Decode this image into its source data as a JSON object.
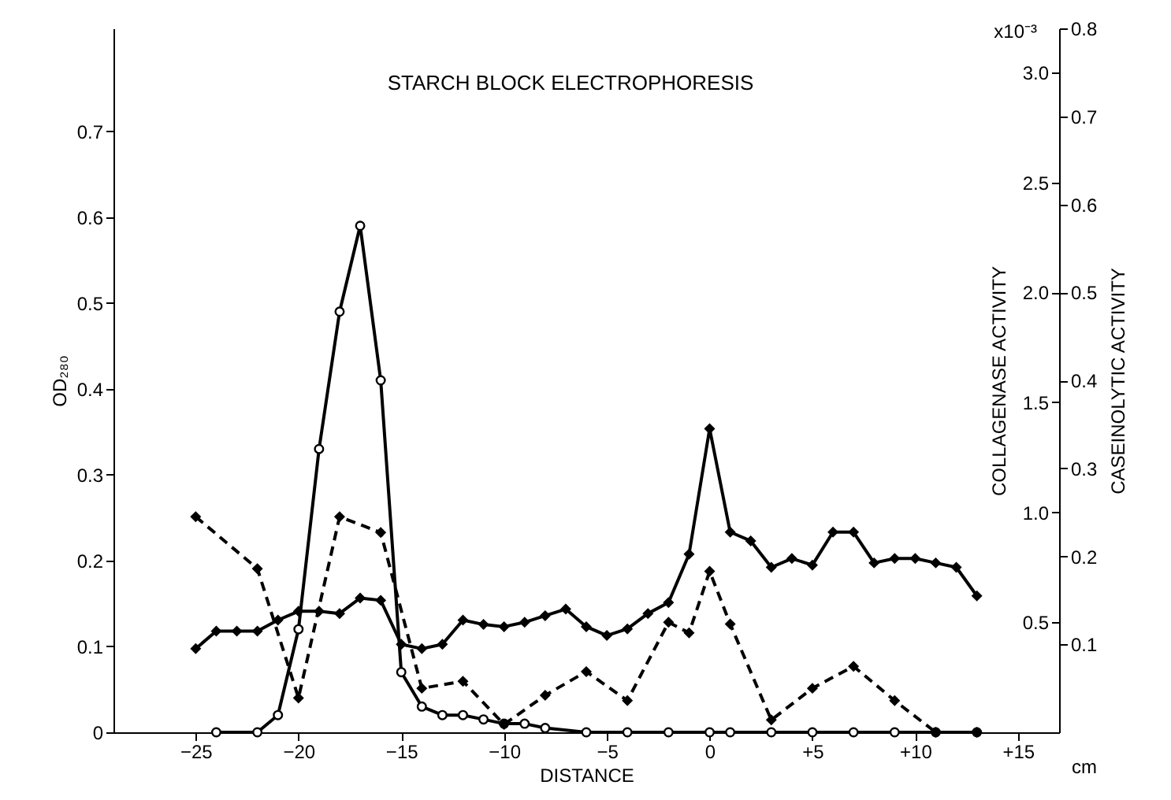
{
  "chart_data": {
    "type": "line",
    "title": "STARCH BLOCK ELECTROPHORESIS",
    "xlabel": "DISTANCE",
    "ylabel": "OD₂₈₀",
    "y2label": "COLLAGENASE ACTIVITY",
    "y3label": "CASEINOLYTIC ACTIVITY",
    "annotations": [
      "x10⁻³",
      "cm"
    ],
    "xlim": [
      -29,
      17
    ],
    "xticks": [
      -25,
      -20,
      -15,
      -10,
      -5,
      0,
      {
        "value": 5,
        "label": "+5"
      },
      {
        "value": 10,
        "label": "+10"
      },
      {
        "value": 15,
        "label": "+15"
      }
    ],
    "ylim": [
      0,
      0.82
    ],
    "yticks": [
      {
        "value": 0,
        "label": "0"
      },
      0.1,
      0.2,
      0.3,
      0.4,
      0.5,
      0.6,
      0.7
    ],
    "y2lim": [
      0,
      3.2
    ],
    "y2ticks": [
      0.5,
      {
        "value": 1,
        "label": "1.0"
      },
      1.5,
      {
        "value": 2,
        "label": "2.0"
      },
      2.5,
      {
        "value": 3,
        "label": "3.0"
      }
    ],
    "y3lim": [
      0,
      0.8
    ],
    "y3ticks": [
      0.1,
      0.2,
      0.3,
      0.4,
      0.5,
      0.6,
      0.7,
      0.8
    ],
    "grid": false,
    "series": [
      {
        "color": "#000000",
        "marker": "circle",
        "line_style": "solid",
        "x": [
          -24,
          -22,
          -21,
          -20,
          -19,
          -18,
          -17,
          -16,
          -15,
          -14,
          -13,
          -12,
          -11,
          -10,
          -9,
          -8,
          -6,
          -4,
          -2,
          0,
          1,
          3,
          5,
          7,
          9,
          11,
          13
        ],
        "values": [
          0,
          0,
          0.02,
          0.12,
          0.33,
          0.49,
          0.59,
          0.41,
          0.07,
          0.03,
          0.02,
          0.02,
          0.015,
          0.01,
          0.01,
          0.005,
          0,
          0,
          0,
          0,
          0,
          0,
          0,
          0,
          0,
          0,
          0
        ]
      },
      {
        "color": "#000000",
        "marker": "diamond",
        "line_style": "solid",
        "axis": "y2",
        "x": [
          -25,
          -24,
          -23,
          -22,
          -21,
          -20,
          -19,
          -18,
          -17,
          -16,
          -15,
          -14,
          -13,
          -12,
          -11,
          -10,
          -9,
          -8,
          -7,
          -6,
          -5,
          -4,
          -3,
          -2,
          -1,
          0,
          1,
          2,
          3,
          4,
          5,
          6,
          7,
          8,
          9,
          10,
          11,
          12,
          13
        ],
        "values": [
          0.38,
          0.46,
          0.46,
          0.46,
          0.51,
          0.55,
          0.55,
          0.54,
          0.61,
          0.6,
          0.4,
          0.38,
          0.4,
          0.51,
          0.49,
          0.48,
          0.5,
          0.53,
          0.56,
          0.48,
          0.44,
          0.47,
          0.54,
          0.59,
          0.81,
          1.38,
          0.91,
          0.87,
          0.75,
          0.79,
          0.76,
          0.91,
          0.91,
          0.77,
          0.79,
          0.79,
          0.77,
          0.75,
          0.62
        ]
      },
      {
        "color": "#000000",
        "marker": "diamond",
        "line_style": "dashed",
        "axis": "y3",
        "x": [
          -25,
          -22,
          -20,
          -18,
          -16,
          -14,
          -12,
          -10,
          -8,
          -6,
          -4,
          -2,
          -1,
          0,
          1,
          3,
          5,
          7,
          9,
          11,
          13
        ],
        "values": [
          0.245,
          0.186,
          0.039,
          0.245,
          0.227,
          0.05,
          0.058,
          0.009,
          0.042,
          0.069,
          0.036,
          0.125,
          0.113,
          0.183,
          0.123,
          0.014,
          0.05,
          0.075,
          0.036,
          0,
          0
        ]
      }
    ]
  }
}
